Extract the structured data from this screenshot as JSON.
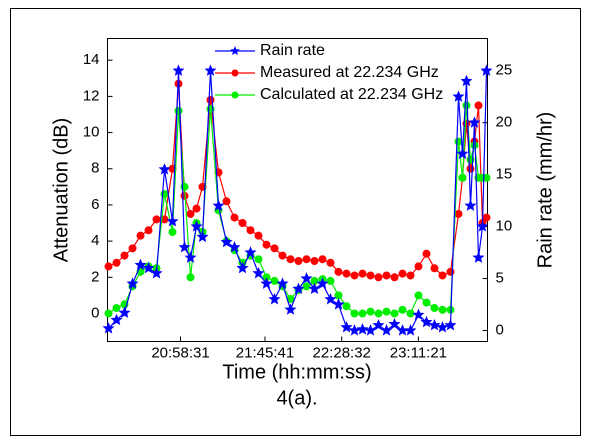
{
  "chart_data": {
    "type": "line",
    "xlabel": "Time (hh:mm:ss)",
    "ylabel": "Attenuation (dB)",
    "y2label": "Rain rate (mm/hr)",
    "caption": "4(a).",
    "xlim": [
      73065,
      85796
    ],
    "ylim": [
      -1.55,
      15.2
    ],
    "y2lim": [
      -1.06,
      28.1
    ],
    "xticks": [
      {
        "value": 75511,
        "label": "20:58:31"
      },
      {
        "value": 78341,
        "label": "21:45:41"
      },
      {
        "value": 80912,
        "label": "22:28:32"
      },
      {
        "value": 83481,
        "label": "23:11:21"
      }
    ],
    "yticks": [
      0,
      2,
      4,
      6,
      8,
      10,
      12,
      14
    ],
    "y2ticks": [
      0,
      5,
      10,
      15,
      20,
      25
    ],
    "x": [
      73099,
      73367,
      73635,
      73903,
      74171,
      74439,
      74707,
      74975,
      75243,
      75444,
      75645,
      75846,
      76047,
      76248,
      76516,
      76784,
      77052,
      77320,
      77588,
      77856,
      78124,
      78392,
      78660,
      78928,
      79196,
      79464,
      79732,
      80000,
      80268,
      80536,
      80804,
      81072,
      81340,
      81608,
      81876,
      82144,
      82412,
      82680,
      82948,
      83216,
      83484,
      83752,
      84020,
      84288,
      84556,
      84824,
      84958,
      85092,
      85226,
      85360,
      85494,
      85628,
      85762
    ],
    "series": [
      {
        "name": "Rain rate",
        "color": "#0000ff",
        "marker": "star",
        "axis": "y2",
        "values": [
          0.2,
          1.0,
          1.7,
          4.5,
          6.3,
          6.0,
          5.5,
          15.5,
          10.5,
          25.0,
          8.0,
          7.0,
          10.0,
          9.0,
          25.0,
          12.0,
          8.5,
          8.0,
          6.0,
          7.5,
          5.5,
          4.5,
          3.0,
          4.5,
          2.0,
          4.0,
          5.0,
          4.0,
          4.5,
          3.0,
          2.5,
          0.3,
          0.0,
          0.1,
          0.0,
          0.5,
          0.0,
          0.6,
          0.0,
          0.0,
          1.5,
          0.8,
          0.5,
          0.3,
          0.5,
          22.5,
          17.0,
          24.0,
          12.0,
          20.0,
          7.0,
          10.0,
          25.0
        ]
      },
      {
        "name": "Measured at 22.234 GHz",
        "color": "#ff0000",
        "marker": "circle",
        "values": [
          2.6,
          2.8,
          3.2,
          3.6,
          4.3,
          4.6,
          5.2,
          5.2,
          8.0,
          12.7,
          6.5,
          5.5,
          5.8,
          7.0,
          11.8,
          7.8,
          6.2,
          5.3,
          5.0,
          4.6,
          4.3,
          3.8,
          3.6,
          3.2,
          3.0,
          2.9,
          3.0,
          2.9,
          3.0,
          2.8,
          2.3,
          2.2,
          2.1,
          2.2,
          2.1,
          2.0,
          2.1,
          2.0,
          2.2,
          2.1,
          2.6,
          3.3,
          2.5,
          2.1,
          2.3,
          5.5,
          7.5,
          10.5,
          8.0,
          9.5,
          11.5,
          5.0,
          5.3
        ]
      },
      {
        "name": "Calculated at 22.234 GHz",
        "color": "#00ee00",
        "marker": "circle",
        "values": [
          0.0,
          0.3,
          0.5,
          1.5,
          2.3,
          2.6,
          2.5,
          6.6,
          4.5,
          11.2,
          7.0,
          2.0,
          5.0,
          4.5,
          11.3,
          5.7,
          4.0,
          3.5,
          2.8,
          3.2,
          3.0,
          2.0,
          1.8,
          1.5,
          0.8,
          1.3,
          1.5,
          1.8,
          1.9,
          1.8,
          1.0,
          0.4,
          0.0,
          0.0,
          0.1,
          0.0,
          0.1,
          0.0,
          0.2,
          0.0,
          1.0,
          0.6,
          0.3,
          0.2,
          0.2,
          9.5,
          7.5,
          11.5,
          8.5,
          9.3,
          7.5,
          7.5,
          7.5
        ]
      }
    ]
  }
}
